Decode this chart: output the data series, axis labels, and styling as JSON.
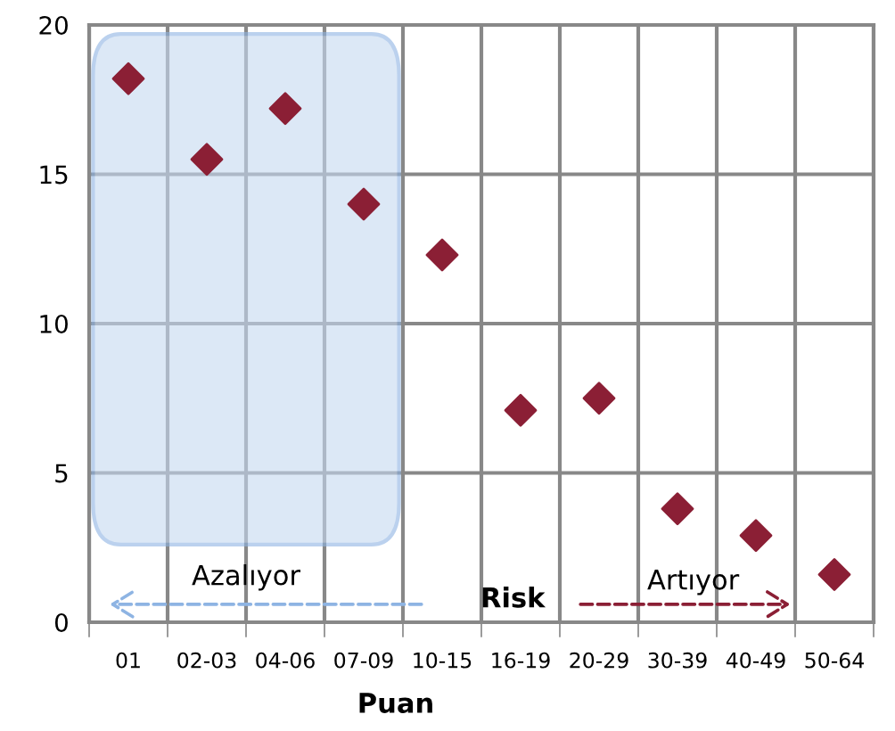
{
  "chart_data": {
    "type": "scatter",
    "xlabel": "Puan",
    "categories": [
      "01",
      "02-03",
      "04-06",
      "07-09",
      "10-15",
      "16-19",
      "20-29",
      "30-39",
      "40-49",
      "50-64"
    ],
    "series": [
      {
        "color": "#8b1f35",
        "values": [
          18.2,
          15.5,
          17.2,
          14.0,
          12.3,
          7.1,
          7.5,
          3.8,
          2.9,
          1.6
        ]
      }
    ],
    "ylim": [
      0,
      20
    ],
    "yticks": [
      0,
      5,
      10,
      15,
      20
    ],
    "grid": true,
    "marker": "diamond",
    "annotations": [
      "Azalıyor",
      "Risk",
      "Artıyor"
    ]
  }
}
